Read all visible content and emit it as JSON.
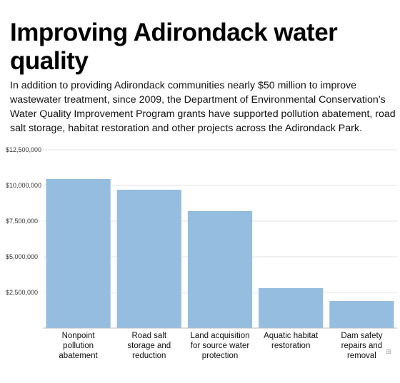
{
  "chart_data": {
    "type": "bar",
    "title": "Improving Adirondack water quality",
    "subtitle": "In addition to providing Adirondack communities nearly $50 million to improve wastewater treatment, since 2009, the Department of Environmental Conservation’s Water Quality Improvement Program grants have supported pollution abatement, road salt storage, habitat restoration and other projects across the Adirondack Park.",
    "categories": [
      [
        "Nonpoint",
        "pollution",
        "abatement"
      ],
      [
        "Road salt",
        "storage and",
        "reduction"
      ],
      [
        "Land acquisition",
        "for source water",
        "protection"
      ],
      [
        "Aquatic habitat",
        "restoration"
      ],
      [
        "Dam safety",
        "repairs and",
        "removal"
      ]
    ],
    "values": [
      10450000,
      9700000,
      8200000,
      2800000,
      1900000
    ],
    "ylim": [
      0,
      12500000
    ],
    "yticks": [
      2500000,
      5000000,
      7500000,
      10000000,
      12500000
    ],
    "ytick_labels": [
      "$2,500,000",
      "$5,000,000",
      "$7,500,000",
      "$10,000,000",
      "$12,500,000"
    ],
    "grid": true,
    "bar_color": "#94bde0",
    "xlabel": "",
    "ylabel": ""
  }
}
